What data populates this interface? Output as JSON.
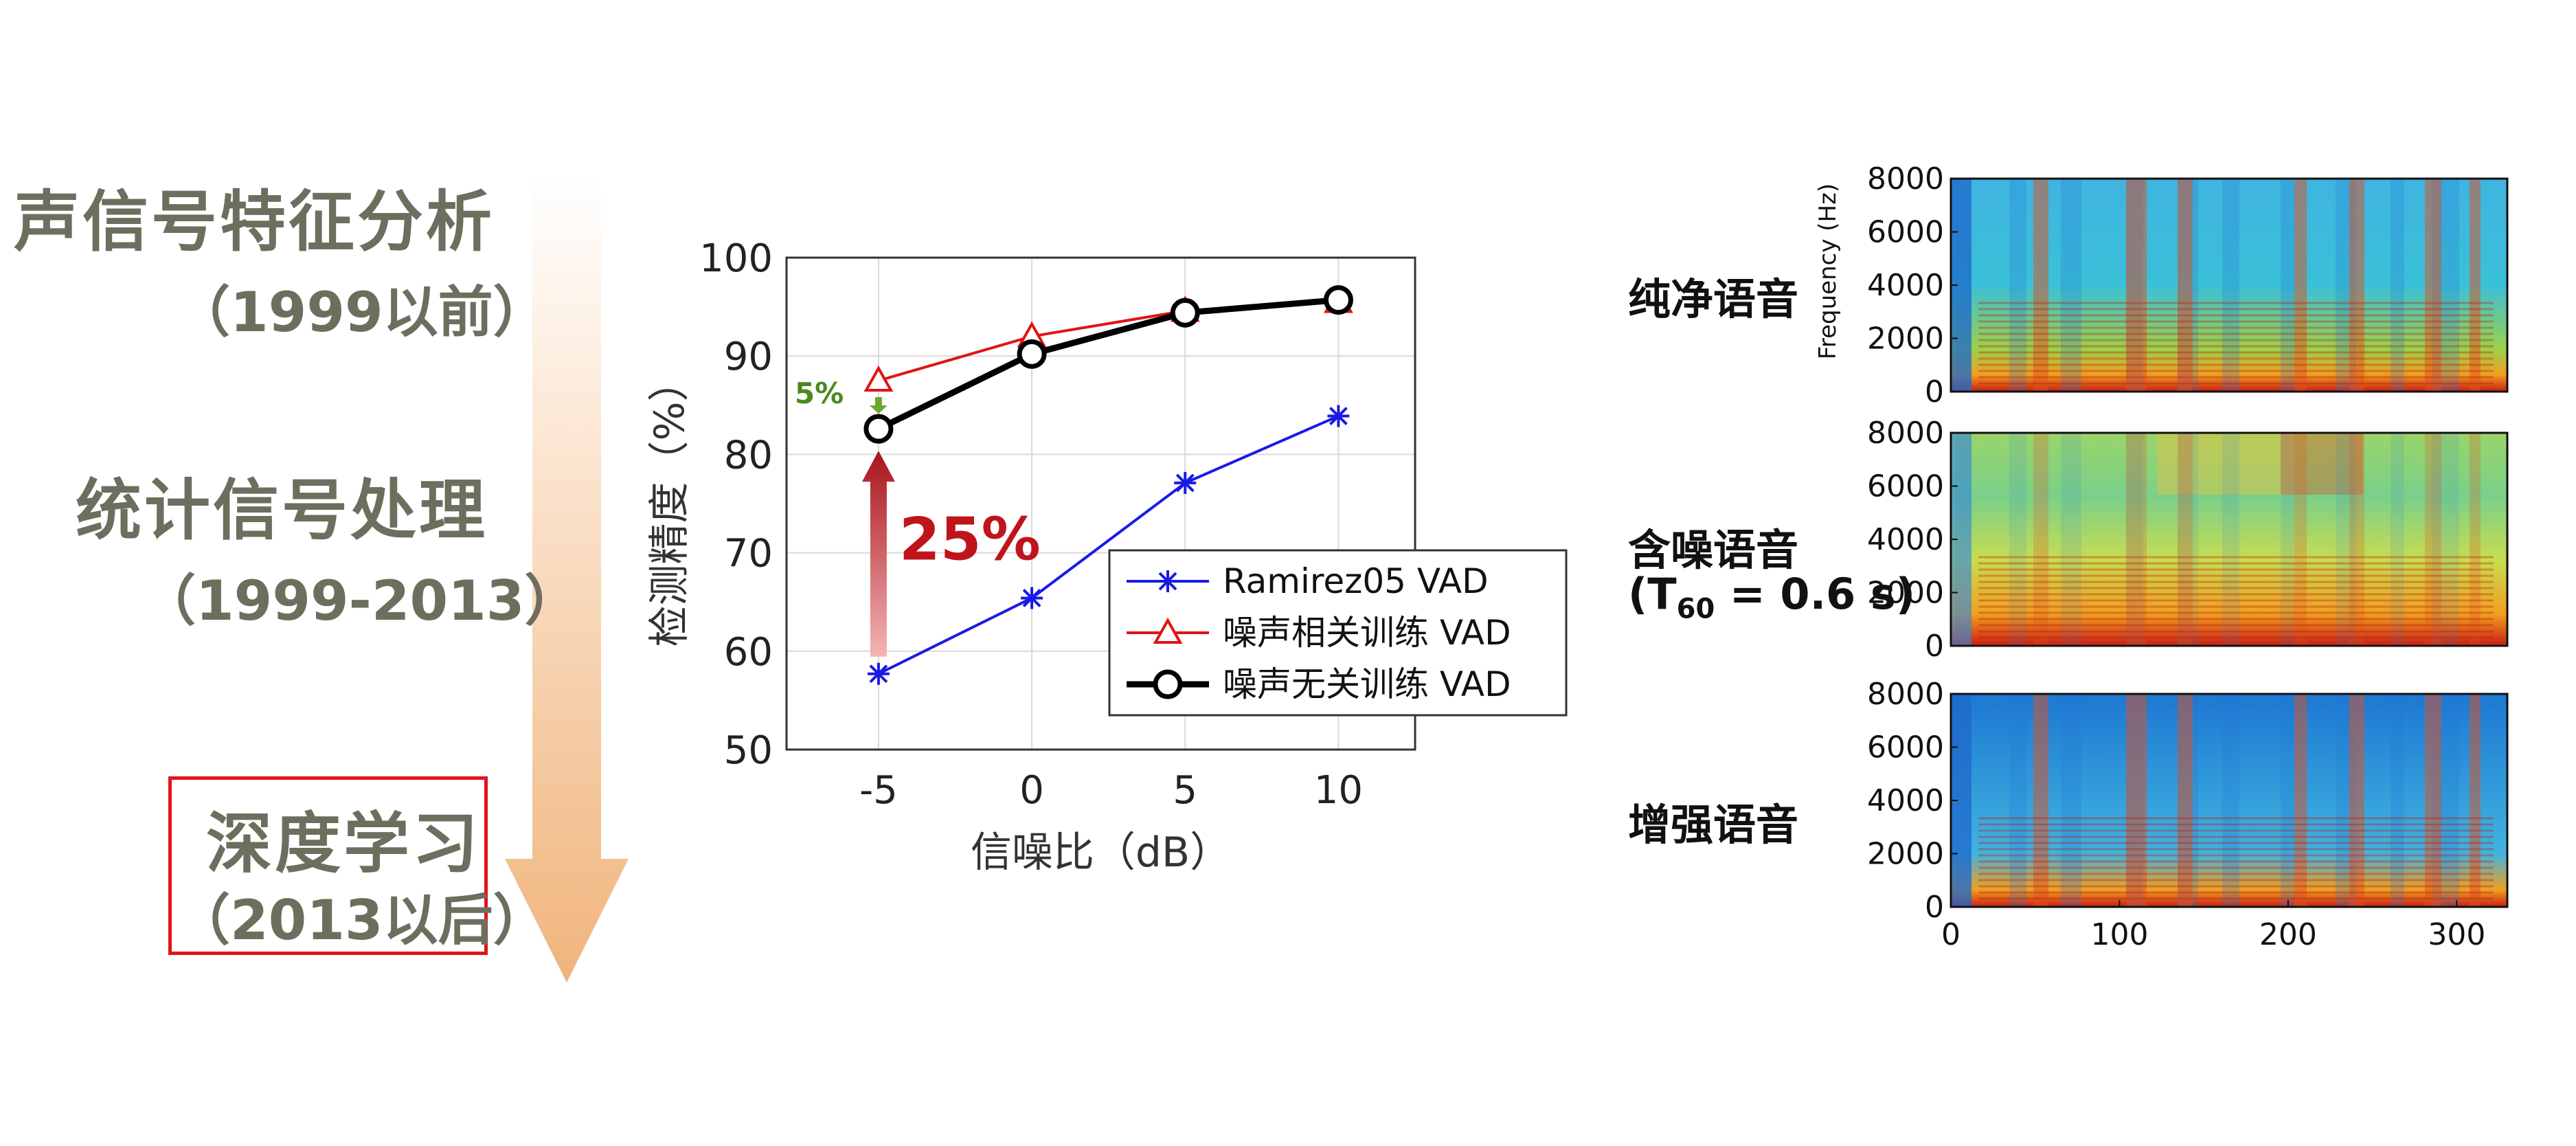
{
  "timeline": {
    "stages": [
      {
        "title": "声信号特征分析",
        "period": "（1999以前）"
      },
      {
        "title": "统计信号处理",
        "period": "（1999-2013）"
      },
      {
        "title": "深度学习",
        "period": "（2013以后）",
        "highlighted": true
      }
    ],
    "arrow_color": "#f3c49a",
    "highlight_color": "#e0141c"
  },
  "chart_data": {
    "type": "line",
    "x": [
      -5,
      0,
      5,
      10
    ],
    "xlabel": "信噪比（dB）",
    "ylabel": "检测精度（%）",
    "xlim": [
      -8,
      12.5
    ],
    "ylim": [
      50,
      100
    ],
    "xticks": [
      "-5",
      "0",
      "5",
      "10"
    ],
    "yticks": [
      "50",
      "60",
      "70",
      "80",
      "90",
      "100"
    ],
    "grid": true,
    "legend_position": "bottom-right",
    "series": [
      {
        "name": "Ramirez05 VAD",
        "values": [
          57.7,
          65.4,
          77.1,
          83.9
        ],
        "color": "#1a1ae6",
        "marker": "star"
      },
      {
        "name": "噪声相关训练 VAD",
        "values": [
          87.5,
          92.0,
          94.6,
          95.5
        ],
        "color": "#e01414",
        "marker": "triangle"
      },
      {
        "name": "噪声无关训练 VAD",
        "values": [
          82.6,
          90.2,
          94.4,
          95.7
        ],
        "color": "#000000",
        "marker": "circle"
      }
    ],
    "annotations": [
      {
        "text": "25%",
        "color": "#c0141c"
      },
      {
        "text": "5%",
        "color": "#4a8a1e"
      }
    ]
  },
  "spectrograms": {
    "panels": [
      {
        "label": "纯净语音"
      },
      {
        "label": "含噪语音",
        "sublabel": "(T60 = 0.6 s)"
      },
      {
        "label": "增强语音"
      }
    ],
    "ylabel": "Frequency (Hz)",
    "yticks": [
      "0",
      "2000",
      "4000",
      "6000",
      "8000"
    ],
    "xticks": [
      "0",
      "100",
      "200",
      "300"
    ]
  }
}
